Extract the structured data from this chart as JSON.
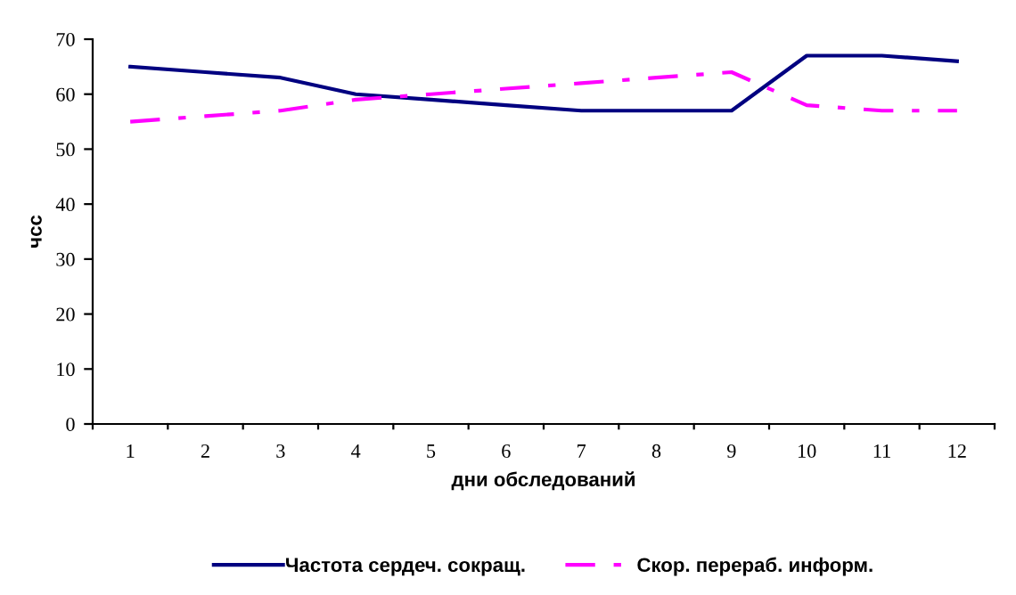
{
  "chart_data": {
    "type": "line",
    "xlabel": "дни обследований",
    "ylabel": "чсс",
    "categories": [
      "1",
      "2",
      "3",
      "4",
      "5",
      "6",
      "7",
      "8",
      "9",
      "10",
      "11",
      "12"
    ],
    "series": [
      {
        "name": "Частота сердеч. сокращ.",
        "color": "#000080",
        "values": [
          65,
          64,
          63,
          60,
          59,
          58,
          57,
          57,
          57,
          67,
          67,
          66
        ],
        "line_style": "solid"
      },
      {
        "name": "Скор. перераб. информ.",
        "color": "#ff00ff",
        "values": [
          55,
          56,
          57,
          59,
          60,
          61,
          62,
          63,
          64,
          58,
          57,
          57
        ],
        "line_style": "dashed"
      }
    ],
    "ylim": [
      0,
      70
    ],
    "yticks": [
      0,
      10,
      20,
      30,
      40,
      50,
      60,
      70
    ],
    "grid": false,
    "legend": "bottom",
    "marker": "none"
  }
}
